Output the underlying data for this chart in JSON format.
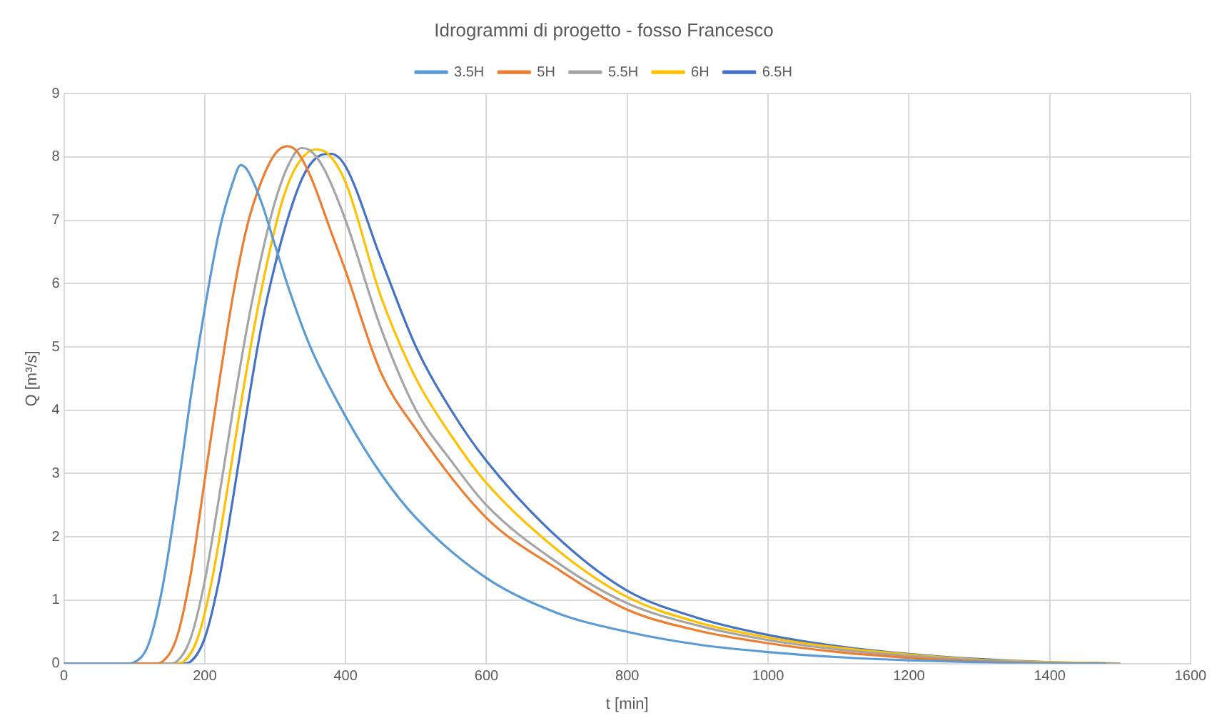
{
  "chart_data": {
    "type": "line",
    "title": "Idrogrammi di progetto - fosso Francesco",
    "xlabel": "t [min]",
    "ylabel": "Q [m³/s]",
    "xlim": [
      0,
      1600
    ],
    "xticks": [
      0,
      200,
      400,
      600,
      800,
      1000,
      1200,
      1400,
      1600
    ],
    "ylim": [
      0,
      9
    ],
    "yticks": [
      0,
      1,
      2,
      3,
      4,
      5,
      6,
      7,
      8,
      9
    ],
    "grid": true,
    "legend": "top",
    "marker": "none",
    "line_style": "solid",
    "series": [
      {
        "name": "3.5H",
        "color": "#5b9bd5",
        "x": [
          0,
          90,
          100,
          120,
          140,
          160,
          180,
          200,
          220,
          240,
          251,
          260,
          280,
          300,
          320,
          350,
          400,
          450,
          500,
          600,
          700,
          800,
          900,
          1000,
          1100,
          1200,
          1300,
          1400,
          1480
        ],
        "values": [
          0,
          0,
          0.02,
          0.3,
          1.2,
          2.6,
          4.2,
          5.6,
          6.8,
          7.6,
          7.87,
          7.8,
          7.3,
          6.6,
          5.9,
          5.0,
          3.9,
          3.0,
          2.3,
          1.35,
          0.8,
          0.5,
          0.3,
          0.18,
          0.1,
          0.05,
          0.02,
          0,
          0
        ]
      },
      {
        "name": "5H",
        "color": "#ed7d31",
        "x": [
          0,
          130,
          140,
          160,
          180,
          200,
          220,
          240,
          260,
          280,
          300,
          317,
          330,
          350,
          380,
          400,
          450,
          500,
          600,
          700,
          800,
          900,
          1000,
          1100,
          1200,
          1300,
          1400,
          1480
        ],
        "values": [
          0,
          0,
          0.03,
          0.4,
          1.4,
          2.9,
          4.4,
          5.8,
          6.9,
          7.6,
          8.05,
          8.17,
          8.1,
          7.7,
          6.8,
          6.2,
          4.6,
          3.7,
          2.3,
          1.5,
          0.85,
          0.52,
          0.32,
          0.18,
          0.09,
          0.03,
          0,
          0
        ]
      },
      {
        "name": "5.5H",
        "color": "#a5a5a5",
        "x": [
          0,
          150,
          160,
          180,
          200,
          220,
          240,
          260,
          280,
          300,
          320,
          337,
          350,
          370,
          400,
          450,
          500,
          550,
          600,
          700,
          800,
          900,
          1000,
          1100,
          1200,
          1300,
          1400,
          1500
        ],
        "values": [
          0,
          0,
          0.03,
          0.4,
          1.3,
          2.6,
          4.0,
          5.3,
          6.4,
          7.3,
          7.9,
          8.14,
          8.1,
          7.8,
          7.0,
          5.3,
          4.0,
          3.2,
          2.5,
          1.6,
          0.95,
          0.6,
          0.37,
          0.22,
          0.12,
          0.05,
          0.01,
          0
        ]
      },
      {
        "name": "6H",
        "color": "#ffc000",
        "x": [
          0,
          160,
          170,
          190,
          210,
          230,
          250,
          270,
          290,
          310,
          330,
          358,
          375,
          400,
          450,
          500,
          550,
          600,
          700,
          800,
          900,
          1000,
          1100,
          1200,
          1300,
          1400,
          1500
        ],
        "values": [
          0,
          0,
          0.03,
          0.4,
          1.3,
          2.6,
          4.0,
          5.3,
          6.4,
          7.3,
          7.85,
          8.12,
          8.05,
          7.6,
          5.8,
          4.5,
          3.6,
          2.85,
          1.8,
          1.05,
          0.65,
          0.41,
          0.25,
          0.14,
          0.06,
          0.02,
          0
        ]
      },
      {
        "name": "6.5H",
        "color": "#4472c4",
        "x": [
          0,
          170,
          180,
          200,
          220,
          240,
          260,
          280,
          300,
          320,
          340,
          360,
          379,
          400,
          450,
          500,
          550,
          600,
          700,
          800,
          900,
          1000,
          1100,
          1200,
          1300,
          1400,
          1500
        ],
        "values": [
          0,
          0,
          0.03,
          0.4,
          1.3,
          2.6,
          4.0,
          5.3,
          6.3,
          7.1,
          7.7,
          8.0,
          8.05,
          7.85,
          6.4,
          5.0,
          4.0,
          3.2,
          2.0,
          1.15,
          0.72,
          0.45,
          0.27,
          0.15,
          0.07,
          0.02,
          0
        ]
      }
    ]
  }
}
